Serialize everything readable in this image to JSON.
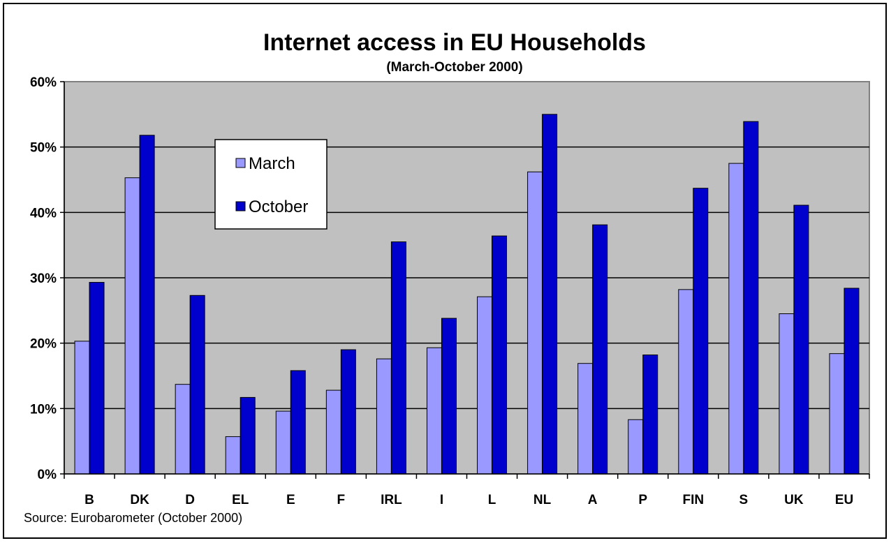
{
  "chart_data": {
    "type": "bar",
    "title": "Internet access in EU Households",
    "subtitle": "(March-October 2000)",
    "categories": [
      "B",
      "DK",
      "D",
      "EL",
      "E",
      "F",
      "IRL",
      "I",
      "L",
      "NL",
      "A",
      "P",
      "FIN",
      "S",
      "UK",
      "EU"
    ],
    "series": [
      {
        "name": "March",
        "color": "#9999ff",
        "values": [
          20.3,
          45.3,
          13.7,
          5.7,
          9.6,
          12.8,
          17.6,
          19.3,
          27.1,
          46.2,
          16.9,
          8.3,
          28.2,
          47.5,
          24.5,
          18.4
        ]
      },
      {
        "name": "October",
        "color": "#0000cc",
        "values": [
          29.3,
          51.8,
          27.3,
          11.7,
          15.8,
          19.0,
          35.5,
          23.8,
          36.4,
          55.0,
          38.1,
          18.2,
          43.7,
          53.9,
          41.1,
          28.4
        ]
      }
    ],
    "ylim": [
      0,
      60
    ],
    "yticks": [
      "0%",
      "10%",
      "20%",
      "30%",
      "40%",
      "50%",
      "60%"
    ],
    "grid": true,
    "plot_background": "#c0c0c0",
    "legend_placement": "inside-upper-left",
    "source": "Source: Eurobarometer (October 2000)"
  }
}
